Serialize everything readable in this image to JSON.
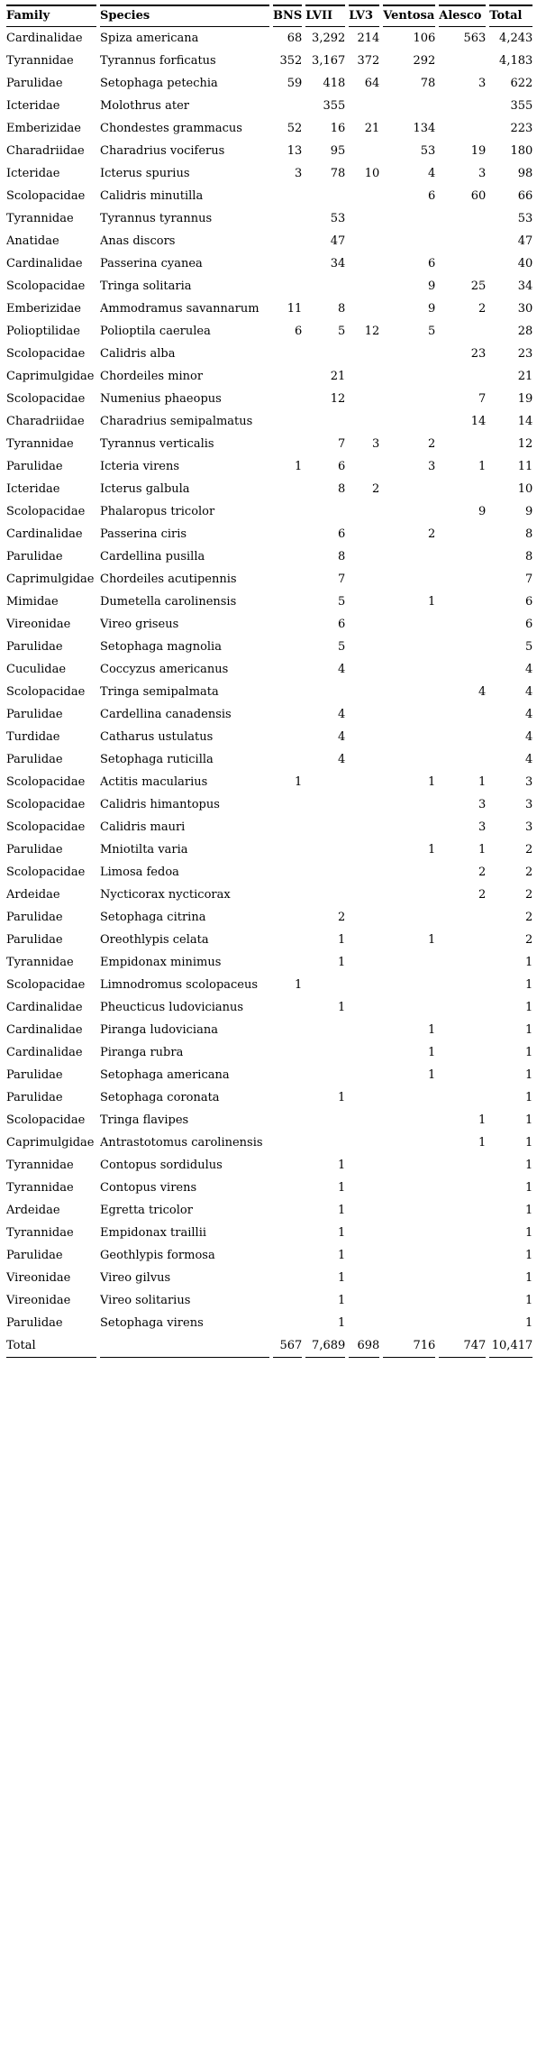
{
  "colors": {
    "background": "#ffffff",
    "text": "#000000",
    "rule": "#000000"
  },
  "table": {
    "columns": [
      "Family",
      "Species",
      "BNS",
      "LVII",
      "LV3",
      "Ventosa",
      "Alesco",
      "Total"
    ],
    "rows": [
      [
        "Cardinalidae",
        "Spiza americana",
        "68",
        "3,292",
        "214",
        "106",
        "563",
        "4,243"
      ],
      [
        "Tyrannidae",
        "Tyrannus forficatus",
        "352",
        "3,167",
        "372",
        "292",
        "",
        "4,183"
      ],
      [
        "Parulidae",
        "Setophaga petechia",
        "59",
        "418",
        "64",
        "78",
        "3",
        "622"
      ],
      [
        "Icteridae",
        "Molothrus ater",
        "",
        "355",
        "",
        "",
        "",
        "355"
      ],
      [
        "Emberizidae",
        "Chondestes grammacus",
        "52",
        "16",
        "21",
        "134",
        "",
        "223"
      ],
      [
        "Charadriidae",
        "Charadrius vociferus",
        "13",
        "95",
        "",
        "53",
        "19",
        "180"
      ],
      [
        "Icteridae",
        "Icterus spurius",
        "3",
        "78",
        "10",
        "4",
        "3",
        "98"
      ],
      [
        "Scolopacidae",
        "Calidris minutilla",
        "",
        "",
        "",
        "6",
        "60",
        "66"
      ],
      [
        "Tyrannidae",
        "Tyrannus tyrannus",
        "",
        "53",
        "",
        "",
        "",
        "53"
      ],
      [
        "Anatidae",
        "Anas discors",
        "",
        "47",
        "",
        "",
        "",
        "47"
      ],
      [
        "Cardinalidae",
        "Passerina cyanea",
        "",
        "34",
        "",
        "6",
        "",
        "40"
      ],
      [
        "Scolopacidae",
        "Tringa solitaria",
        "",
        "",
        "",
        "9",
        "25",
        "34"
      ],
      [
        "Emberizidae",
        "Ammodramus savannarum",
        "11",
        "8",
        "",
        "9",
        "2",
        "30"
      ],
      [
        "Polioptilidae",
        "Polioptila caerulea",
        "6",
        "5",
        "12",
        "5",
        "",
        "28"
      ],
      [
        "Scolopacidae",
        "Calidris alba",
        "",
        "",
        "",
        "",
        "23",
        "23"
      ],
      [
        "Caprimulgidae",
        "Chordeiles minor",
        "",
        "21",
        "",
        "",
        "",
        "21"
      ],
      [
        "Scolopacidae",
        "Numenius phaeopus",
        "",
        "12",
        "",
        "",
        "7",
        "19"
      ],
      [
        "Charadriidae",
        "Charadrius semipalmatus",
        "",
        "",
        "",
        "",
        "14",
        "14"
      ],
      [
        "Tyrannidae",
        "Tyrannus verticalis",
        "",
        "7",
        "3",
        "2",
        "",
        "12"
      ],
      [
        "Parulidae",
        "Icteria virens",
        "1",
        "6",
        "",
        "3",
        "1",
        "11"
      ],
      [
        "Icteridae",
        "Icterus galbula",
        "",
        "8",
        "2",
        "",
        "",
        "10"
      ],
      [
        "Scolopacidae",
        "Phalaropus tricolor",
        "",
        "",
        "",
        "",
        "9",
        "9"
      ],
      [
        "Cardinalidae",
        "Passerina ciris",
        "",
        "6",
        "",
        "2",
        "",
        "8"
      ],
      [
        "Parulidae",
        "Cardellina pusilla",
        "",
        "8",
        "",
        "",
        "",
        "8"
      ],
      [
        "Caprimulgidae",
        "Chordeiles acutipennis",
        "",
        "7",
        "",
        "",
        "",
        "7"
      ],
      [
        "Mimidae",
        "Dumetella carolinensis",
        "",
        "5",
        "",
        "1",
        "",
        "6"
      ],
      [
        "Vireonidae",
        "Vireo griseus",
        "",
        "6",
        "",
        "",
        "",
        "6"
      ],
      [
        "Parulidae",
        "Setophaga magnolia",
        "",
        "5",
        "",
        "",
        "",
        "5"
      ],
      [
        "Cuculidae",
        "Coccyzus americanus",
        "",
        "4",
        "",
        "",
        "",
        "4"
      ],
      [
        "Scolopacidae",
        "Tringa semipalmata",
        "",
        "",
        "",
        "",
        "4",
        "4"
      ],
      [
        "Parulidae",
        "Cardellina canadensis",
        "",
        "4",
        "",
        "",
        "",
        "4"
      ],
      [
        "Turdidae",
        "Catharus ustulatus",
        "",
        "4",
        "",
        "",
        "",
        "4"
      ],
      [
        "Parulidae",
        "Setophaga ruticilla",
        "",
        "4",
        "",
        "",
        "",
        "4"
      ],
      [
        "Scolopacidae",
        "Actitis macularius",
        "1",
        "",
        "",
        "1",
        "1",
        "3"
      ],
      [
        "Scolopacidae",
        "Calidris himantopus",
        "",
        "",
        "",
        "",
        "3",
        "3"
      ],
      [
        "Scolopacidae",
        "Calidris mauri",
        "",
        "",
        "",
        "",
        "3",
        "3"
      ],
      [
        "Parulidae",
        "Mniotilta varia",
        "",
        "",
        "",
        "1",
        "1",
        "2"
      ],
      [
        "Scolopacidae",
        "Limosa fedoa",
        "",
        "",
        "",
        "",
        "2",
        "2"
      ],
      [
        "Ardeidae",
        "Nycticorax nycticorax",
        "",
        "",
        "",
        "",
        "2",
        "2"
      ],
      [
        "Parulidae",
        "Setophaga citrina",
        "",
        "2",
        "",
        "",
        "",
        "2"
      ],
      [
        "Parulidae",
        "Oreothlypis celata",
        "",
        "1",
        "",
        "1",
        "",
        "2"
      ],
      [
        "Tyrannidae",
        "Empidonax minimus",
        "",
        "1",
        "",
        "",
        "",
        "1"
      ],
      [
        "Scolopacidae",
        "Limnodromus scolopaceus",
        "1",
        "",
        "",
        "",
        "",
        "1"
      ],
      [
        "Cardinalidae",
        "Pheucticus ludovicianus",
        "",
        "1",
        "",
        "",
        "",
        "1"
      ],
      [
        "Cardinalidae",
        "Piranga ludoviciana",
        "",
        "",
        "",
        "1",
        "",
        "1"
      ],
      [
        "Cardinalidae",
        "Piranga rubra",
        "",
        "",
        "",
        "1",
        "",
        "1"
      ],
      [
        "Parulidae",
        "Setophaga americana",
        "",
        "",
        "",
        "1",
        "",
        "1"
      ],
      [
        "Parulidae",
        "Setophaga coronata",
        "",
        "1",
        "",
        "",
        "",
        "1"
      ],
      [
        "Scolopacidae",
        "Tringa flavipes",
        "",
        "",
        "",
        "",
        "1",
        "1"
      ],
      [
        "Caprimulgidae",
        "Antrastotomus carolinensis",
        "",
        "",
        "",
        "",
        "1",
        "1"
      ],
      [
        "Tyrannidae",
        "Contopus sordidulus",
        "",
        "1",
        "",
        "",
        "",
        "1"
      ],
      [
        "Tyrannidae",
        "Contopus virens",
        "",
        "1",
        "",
        "",
        "",
        "1"
      ],
      [
        "Ardeidae",
        "Egretta tricolor",
        "",
        "1",
        "",
        "",
        "",
        "1"
      ],
      [
        "Tyrannidae",
        "Empidonax traillii",
        "",
        "1",
        "",
        "",
        "",
        "1"
      ],
      [
        "Parulidae",
        "Geothlypis formosa",
        "",
        "1",
        "",
        "",
        "",
        "1"
      ],
      [
        "Vireonidae",
        "Vireo gilvus",
        "",
        "1",
        "",
        "",
        "",
        "1"
      ],
      [
        "Vireonidae",
        "Vireo solitarius",
        "",
        "1",
        "",
        "",
        "",
        "1"
      ],
      [
        "Parulidae",
        "Setophaga virens",
        "",
        "1",
        "",
        "",
        "",
        "1"
      ]
    ],
    "total_row": [
      "Total",
      "",
      "567",
      "7,689",
      "698",
      "716",
      "747",
      "10,417"
    ]
  }
}
